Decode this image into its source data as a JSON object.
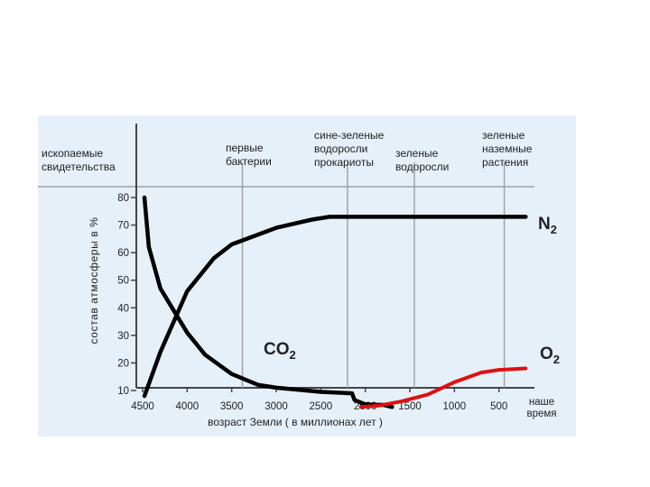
{
  "chart_data": {
    "type": "line",
    "ylabel": "состав атмосферы в %",
    "xlabel": "возраст Земли ( в миллионах лет )",
    "xlim": [
      4500,
      0
    ],
    "ylim": [
      5,
      88
    ],
    "y_ticks": [
      10,
      20,
      30,
      40,
      50,
      60,
      70,
      80
    ],
    "x_ticks": [
      {
        "value": 4500,
        "label": "4500"
      },
      {
        "value": 4000,
        "label": "4000"
      },
      {
        "value": 3500,
        "label": "3500"
      },
      {
        "value": 3000,
        "label": "3000"
      },
      {
        "value": 2500,
        "label": "2500"
      },
      {
        "value": 2000,
        "label": "2000"
      },
      {
        "value": 1500,
        "label": "1500"
      },
      {
        "value": 1000,
        "label": "1000"
      },
      {
        "value": 500,
        "label": "500"
      }
    ],
    "x_end_label": [
      "наше",
      "время"
    ],
    "colors": {
      "background": "#e6f0f9",
      "n2": "#000000",
      "co2": "#000000",
      "o2": "#dd1111"
    },
    "series": [
      {
        "name": "N2",
        "label_main": "N",
        "label_sub": "2",
        "points": [
          [
            4480,
            8
          ],
          [
            4300,
            24
          ],
          [
            4000,
            46
          ],
          [
            3700,
            58
          ],
          [
            3500,
            63
          ],
          [
            3000,
            69
          ],
          [
            2600,
            72
          ],
          [
            2400,
            73
          ],
          [
            2200,
            73
          ],
          [
            1500,
            73
          ],
          [
            1000,
            73
          ],
          [
            500,
            73
          ],
          [
            200,
            73
          ]
        ]
      },
      {
        "name": "CO2",
        "label_main": "CO",
        "label_sub": "2",
        "points": [
          [
            4480,
            80
          ],
          [
            4430,
            62
          ],
          [
            4300,
            47
          ],
          [
            4000,
            31
          ],
          [
            3800,
            23
          ],
          [
            3500,
            16
          ],
          [
            3200,
            12
          ],
          [
            3000,
            11
          ],
          [
            2500,
            9.5
          ],
          [
            2150,
            9
          ],
          [
            2120,
            6.5
          ],
          [
            2000,
            5
          ],
          [
            1900,
            4.8
          ],
          [
            1800,
            4.8
          ],
          [
            1700,
            4
          ]
        ]
      },
      {
        "name": "O2",
        "label_main": "O",
        "label_sub": "2",
        "points": [
          [
            2050,
            4
          ],
          [
            1850,
            4.5
          ],
          [
            1600,
            6
          ],
          [
            1300,
            8.5
          ],
          [
            1000,
            13
          ],
          [
            700,
            16.5
          ],
          [
            500,
            17.5
          ],
          [
            200,
            18
          ]
        ]
      }
    ],
    "events": [
      {
        "x": 4500,
        "lines": [
          "ископаемые",
          "свидетельства"
        ]
      },
      {
        "x": 3380,
        "lines": [
          "первые",
          "бактерии"
        ]
      },
      {
        "x": 2200,
        "lines": [
          "сине-зеленые",
          "водоросли",
          "прокариоты"
        ]
      },
      {
        "x": 1450,
        "lines": [
          "зеленые",
          "водоросли"
        ]
      },
      {
        "x": 440,
        "lines": [
          "зеленые",
          "наземные",
          "растения"
        ]
      }
    ]
  }
}
